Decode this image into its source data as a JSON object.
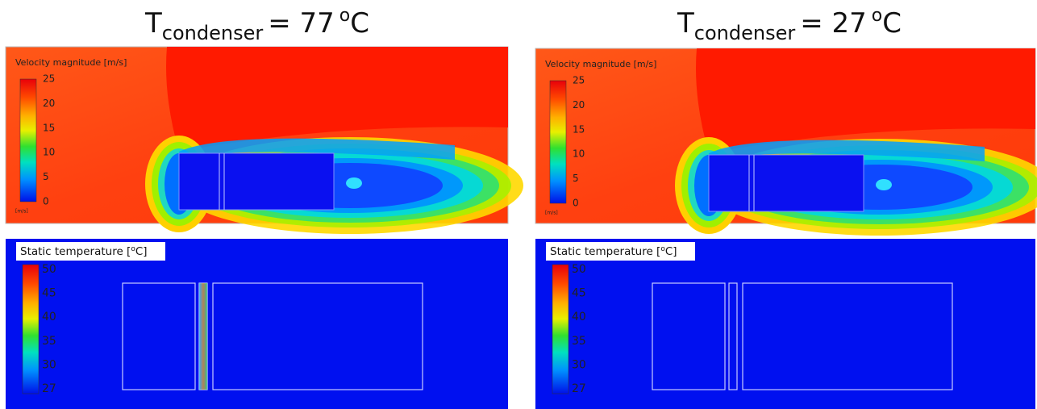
{
  "panels": [
    {
      "title": {
        "main": "T",
        "sub": "condenser",
        "rest": "= 77",
        "sup": "o",
        "unit": "C"
      },
      "velocity": {
        "label": "Velocity magnitude  [m/s]",
        "ticks": [
          25,
          20,
          15,
          10,
          5,
          0
        ],
        "unit": "[m/s]"
      },
      "temperature": {
        "label": "Static temperature [",
        "sup": "o",
        "end": "C]",
        "ticks": [
          50,
          45,
          40,
          35,
          30,
          27
        ]
      }
    },
    {
      "title": {
        "main": "T",
        "sub": "condenser",
        "rest": "= 27",
        "sup": "o",
        "unit": "C"
      },
      "velocity": {
        "label": "Velocity magnitude  [m/s]",
        "ticks": [
          25,
          20,
          15,
          10,
          5,
          0
        ],
        "unit": "[m/s]"
      },
      "temperature": {
        "label": "Static temperature [",
        "sup": "o",
        "end": "C]",
        "ticks": [
          50,
          45,
          40,
          35,
          30,
          27
        ]
      }
    }
  ]
}
